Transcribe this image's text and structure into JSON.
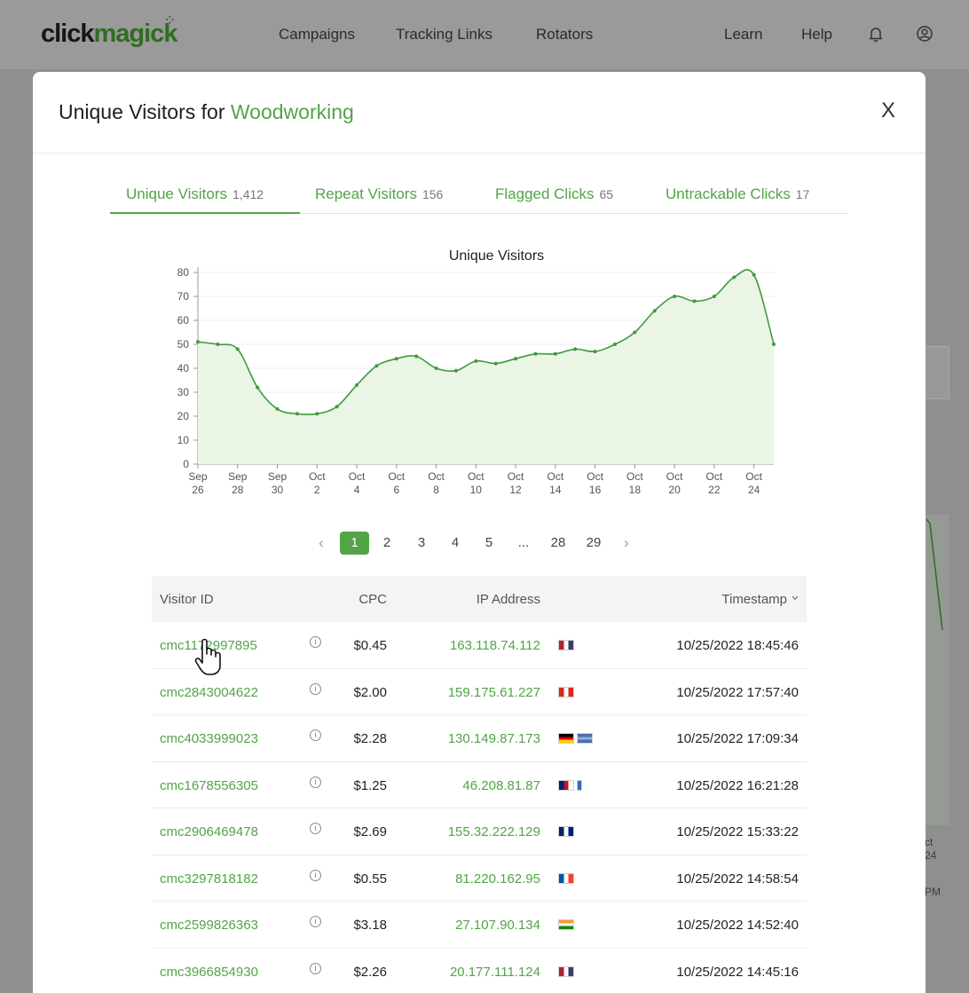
{
  "nav": {
    "logo_part1": "click",
    "logo_part2": "magick",
    "items": [
      "Campaigns",
      "Tracking Links",
      "Rotators"
    ],
    "right_items": [
      "Learn",
      "Help"
    ],
    "bell_icon": "bell-icon",
    "user_icon": "user-circle-icon"
  },
  "background": {
    "axis_text_1": "ct",
    "axis_text_2": "24",
    "time_text": "PM"
  },
  "modal": {
    "title_prefix": "Unique Visitors for",
    "title_campaign": "Woodworking",
    "close_label": "X",
    "tabs": [
      {
        "label": "Unique Visitors",
        "count": "1,412"
      },
      {
        "label": "Repeat Visitors",
        "count": "156"
      },
      {
        "label": "Flagged Clicks",
        "count": "65"
      },
      {
        "label": "Untrackable Clicks",
        "count": "17"
      }
    ]
  },
  "chart_data": {
    "type": "area",
    "title": "Unique Visitors",
    "x": [
      "Sep 26",
      "Sep 27",
      "Sep 28",
      "Sep 29",
      "Sep 30",
      "Oct 1",
      "Oct 2",
      "Oct 3",
      "Oct 4",
      "Oct 5",
      "Oct 6",
      "Oct 7",
      "Oct 8",
      "Oct 9",
      "Oct 10",
      "Oct 11",
      "Oct 12",
      "Oct 13",
      "Oct 14",
      "Oct 15",
      "Oct 16",
      "Oct 17",
      "Oct 18",
      "Oct 19",
      "Oct 20",
      "Oct 21",
      "Oct 22",
      "Oct 23",
      "Oct 24",
      "Oct 25"
    ],
    "tick_labels": [
      [
        "Sep",
        "26"
      ],
      [
        "Sep",
        "28"
      ],
      [
        "Sep",
        "30"
      ],
      [
        "Oct",
        "2"
      ],
      [
        "Oct",
        "4"
      ],
      [
        "Oct",
        "6"
      ],
      [
        "Oct",
        "8"
      ],
      [
        "Oct",
        "10"
      ],
      [
        "Oct",
        "12"
      ],
      [
        "Oct",
        "14"
      ],
      [
        "Oct",
        "16"
      ],
      [
        "Oct",
        "18"
      ],
      [
        "Oct",
        "20"
      ],
      [
        "Oct",
        "22"
      ],
      [
        "Oct",
        "24"
      ]
    ],
    "values": [
      51,
      50,
      48,
      32,
      23,
      21,
      21,
      24,
      33,
      41,
      44,
      45,
      40,
      39,
      43,
      42,
      44,
      46,
      46,
      48,
      47,
      50,
      55,
      64,
      70,
      68,
      70,
      78,
      79,
      50
    ],
    "ylim": [
      0,
      80
    ],
    "yticks": [
      0,
      10,
      20,
      30,
      40,
      50,
      60,
      70,
      80
    ],
    "grid": true,
    "line_color": "#3f9a3a",
    "fill_color": "#eaf5e6"
  },
  "pagination": {
    "prev": "‹",
    "pages": [
      "1",
      "2",
      "3",
      "4",
      "5",
      "...",
      "28",
      "29"
    ],
    "active": "1",
    "next": "›"
  },
  "table": {
    "headers": {
      "visitor_id": "Visitor ID",
      "cpc": "CPC",
      "ip": "IP Address",
      "timestamp": "Timestamp"
    },
    "sort_icon": "chevron-down-icon",
    "rows": [
      {
        "id": "cmc1172997895",
        "cpc": "$0.45",
        "ip": "163.118.74.112",
        "flags": [
          "us"
        ],
        "ts": "10/25/2022 18:45:46"
      },
      {
        "id": "cmc2843004622",
        "cpc": "$2.00",
        "ip": "159.175.61.227",
        "flags": [
          "ca"
        ],
        "ts": "10/25/2022 17:57:40"
      },
      {
        "id": "cmc4033999023",
        "cpc": "$2.28",
        "ip": "130.149.87.173",
        "flags": [
          "de",
          "device"
        ],
        "ts": "10/25/2022 17:09:34"
      },
      {
        "id": "cmc1678556305",
        "cpc": "$1.25",
        "ip": "46.208.81.87",
        "flags": [
          "gb",
          "mobile"
        ],
        "ts": "10/25/2022 16:21:28"
      },
      {
        "id": "cmc2906469478",
        "cpc": "$2.69",
        "ip": "155.32.222.129",
        "flags": [
          "au"
        ],
        "ts": "10/25/2022 15:33:22"
      },
      {
        "id": "cmc3297818182",
        "cpc": "$0.55",
        "ip": "81.220.162.95",
        "flags": [
          "fr"
        ],
        "ts": "10/25/2022 14:58:54"
      },
      {
        "id": "cmc2599826363",
        "cpc": "$3.18",
        "ip": "27.107.90.134",
        "flags": [
          "in"
        ],
        "ts": "10/25/2022 14:52:40"
      },
      {
        "id": "cmc3966854930",
        "cpc": "$2.26",
        "ip": "20.177.111.124",
        "flags": [
          "us"
        ],
        "ts": "10/25/2022 14:45:16"
      }
    ]
  },
  "colors": {
    "accent": "#52a447",
    "overlay": "#8f8f8f"
  }
}
